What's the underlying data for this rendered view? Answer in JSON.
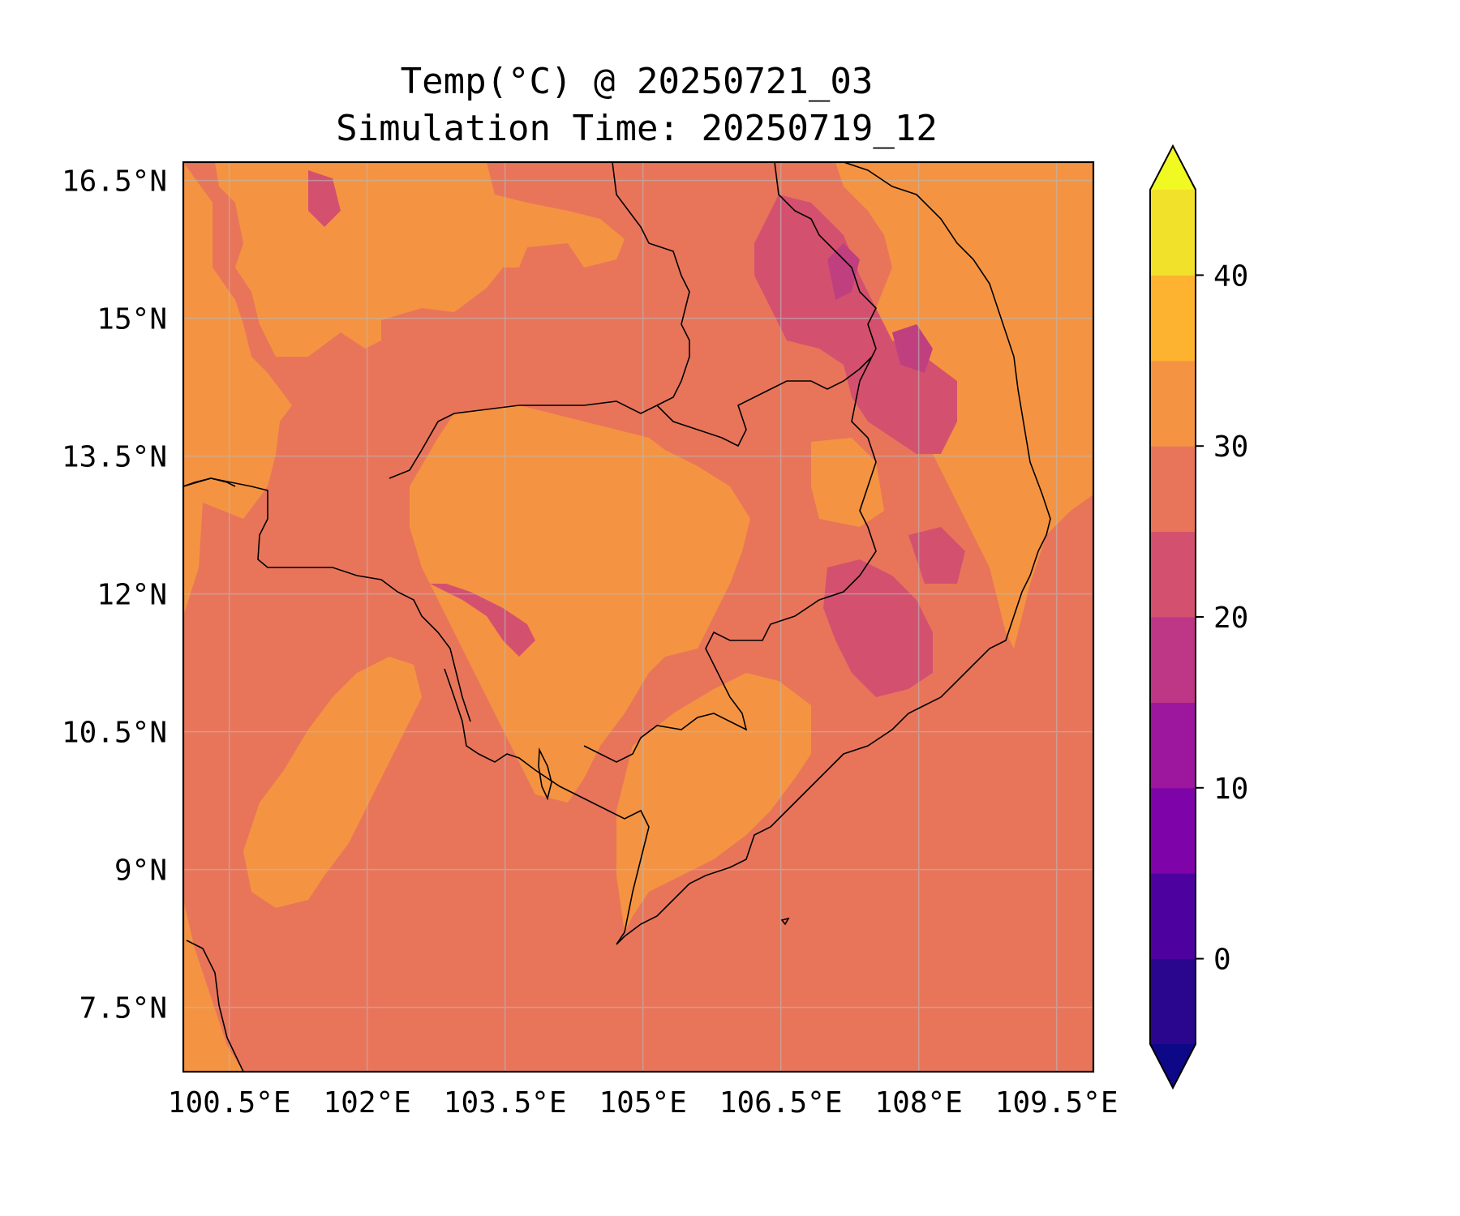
{
  "title": {
    "line1": "Temp(°C) @ 20250721_03",
    "line2": "Simulation Time: 20250719_12"
  },
  "map": {
    "lon_range": [
      100.0,
      109.9
    ],
    "lat_range": [
      6.8,
      16.7
    ],
    "x_ticks": [
      {
        "value": 100.5,
        "label": "100.5°E"
      },
      {
        "value": 102.0,
        "label": "102°E"
      },
      {
        "value": 103.5,
        "label": "103.5°E"
      },
      {
        "value": 105.0,
        "label": "105°E"
      },
      {
        "value": 106.5,
        "label": "106.5°E"
      },
      {
        "value": 108.0,
        "label": "108°E"
      },
      {
        "value": 109.5,
        "label": "109.5°E"
      }
    ],
    "y_ticks": [
      {
        "value": 16.5,
        "label": "16.5°N"
      },
      {
        "value": 15.0,
        "label": "15°N"
      },
      {
        "value": 13.5,
        "label": "13.5°N"
      },
      {
        "value": 12.0,
        "label": "12°N"
      },
      {
        "value": 10.5,
        "label": "10.5°N"
      },
      {
        "value": 9.0,
        "label": "9°N"
      },
      {
        "value": 7.5,
        "label": "7.5°N"
      }
    ],
    "gridlines": true,
    "background_band": "25-30",
    "colors": {
      "band_25_30": "#e8755a",
      "band_30_35": "#f49442",
      "band_20_25": "#d3516f",
      "band_15_20": "#c0407f",
      "coastline": "#000000",
      "gridline": "#b9b9b9"
    }
  },
  "colorbar": {
    "levels": [
      -5,
      0,
      5,
      10,
      15,
      20,
      25,
      30,
      35,
      40,
      45
    ],
    "colors": [
      "#2a068f",
      "#4d02a0",
      "#7e03a8",
      "#9c179e",
      "#bd3786",
      "#d3516f",
      "#e8755a",
      "#f49442",
      "#fdb32f",
      "#f1e12a"
    ],
    "under_color": "#0d0887",
    "over_color": "#f0f921",
    "tick_values": [
      0,
      10,
      20,
      30,
      40
    ],
    "tick_labels": [
      "0",
      "10",
      "20",
      "30",
      "40"
    ]
  }
}
